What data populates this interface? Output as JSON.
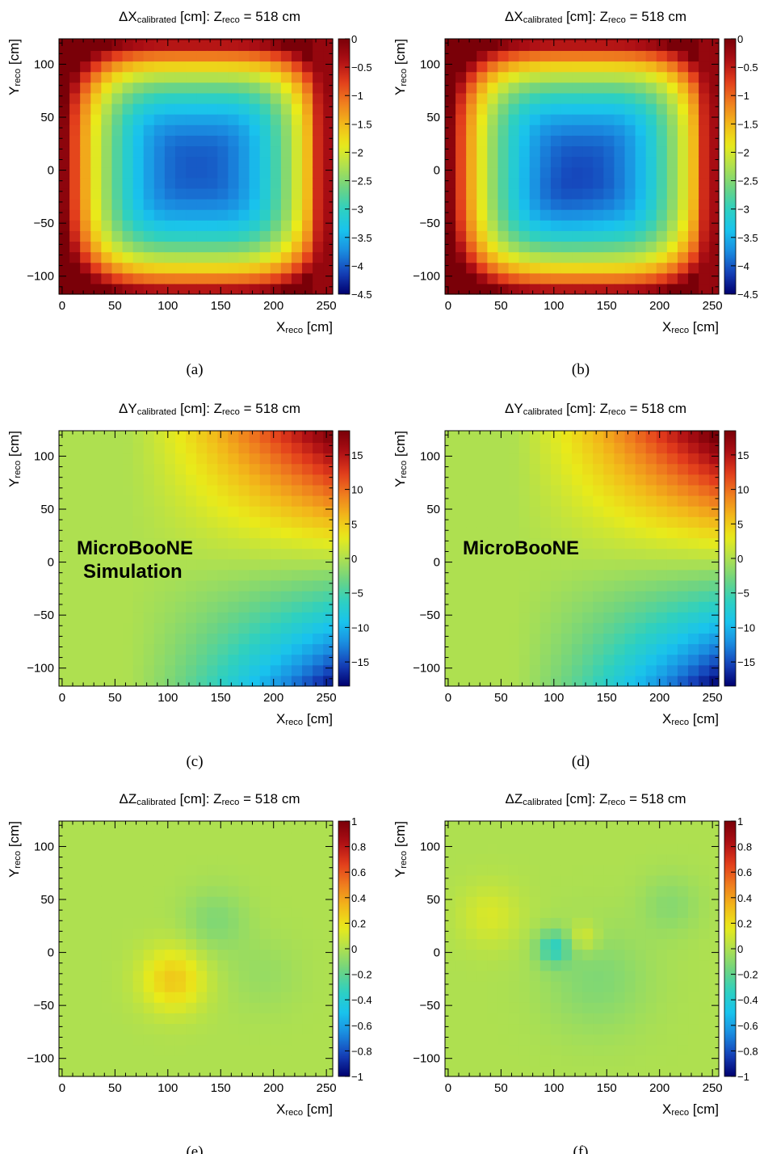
{
  "chart_data": [
    {
      "type": "heatmap",
      "panel_label": "(a)",
      "title": {
        "pre": "ΔX",
        "sub": "calibrated",
        "post": " [cm]:  Z",
        "sub2": "reco",
        "post2": " = 518 cm"
      },
      "xlabel": {
        "main": "X",
        "sub": "reco",
        "unit": " [cm]"
      },
      "ylabel": {
        "main": "Y",
        "sub": "reco",
        "unit": " [cm]"
      },
      "xlim": [
        -3,
        256
      ],
      "ylim": [
        -117,
        124
      ],
      "x_ticks": [
        "0",
        "50",
        "100",
        "150",
        "200",
        "250"
      ],
      "y_ticks": [
        "−100",
        "−50",
        "0",
        "50",
        "100"
      ],
      "zlim": [
        -4.5,
        0
      ],
      "z_ticks": [
        "0",
        "−0.5",
        "−1",
        "−1.5",
        "−2",
        "−2.5",
        "−3",
        "−3.5",
        "−4",
        "−4.5"
      ],
      "grid": {
        "nx": 26,
        "ny": 25,
        "x0": -3,
        "dx": 10,
        "y0": -117,
        "dy": 10
      },
      "field_model": "dx_a",
      "annotation": []
    },
    {
      "type": "heatmap",
      "panel_label": "(b)",
      "title": {
        "pre": "ΔX",
        "sub": "calibrated",
        "post": " [cm]:  Z",
        "sub2": "reco",
        "post2": " = 518 cm"
      },
      "xlabel": {
        "main": "X",
        "sub": "reco",
        "unit": " [cm]"
      },
      "ylabel": {
        "main": "Y",
        "sub": "reco",
        "unit": " [cm]"
      },
      "xlim": [
        -3,
        256
      ],
      "ylim": [
        -117,
        124
      ],
      "x_ticks": [
        "0",
        "50",
        "100",
        "150",
        "200",
        "250"
      ],
      "y_ticks": [
        "−100",
        "−50",
        "0",
        "50",
        "100"
      ],
      "zlim": [
        -4.5,
        0
      ],
      "z_ticks": [
        "0",
        "−0.5",
        "−1",
        "−1.5",
        "−2",
        "−2.5",
        "−3",
        "−3.5",
        "−4",
        "−4.5"
      ],
      "grid": {
        "nx": 26,
        "ny": 25,
        "x0": -3,
        "dx": 10,
        "y0": -117,
        "dy": 10
      },
      "field_model": "dx_b",
      "annotation": []
    },
    {
      "type": "heatmap",
      "panel_label": "(c)",
      "title": {
        "pre": "ΔY",
        "sub": "calibrated",
        "post": " [cm]:  Z",
        "sub2": "reco",
        "post2": " = 518 cm"
      },
      "xlabel": {
        "main": "X",
        "sub": "reco",
        "unit": " [cm]"
      },
      "ylabel": {
        "main": "Y",
        "sub": "reco",
        "unit": " [cm]"
      },
      "xlim": [
        -3,
        256
      ],
      "ylim": [
        -117,
        124
      ],
      "x_ticks": [
        "0",
        "50",
        "100",
        "150",
        "200",
        "250"
      ],
      "y_ticks": [
        "−100",
        "−50",
        "0",
        "50",
        "100"
      ],
      "zlim": [
        -18.5,
        18.5
      ],
      "z_ticks": [
        "15",
        "10",
        "5",
        "0",
        "−5",
        "−10",
        "−15"
      ],
      "grid": {
        "nx": 26,
        "ny": 25,
        "x0": -3,
        "dx": 10,
        "y0": -117,
        "dy": 10
      },
      "field_model": "dy_c",
      "annotation": [
        "MicroBooNE",
        "Simulation"
      ]
    },
    {
      "type": "heatmap",
      "panel_label": "(d)",
      "title": {
        "pre": "ΔY",
        "sub": "calibrated",
        "post": " [cm]:  Z",
        "sub2": "reco",
        "post2": " = 518 cm"
      },
      "xlabel": {
        "main": "X",
        "sub": "reco",
        "unit": " [cm]"
      },
      "ylabel": {
        "main": "Y",
        "sub": "reco",
        "unit": " [cm]"
      },
      "xlim": [
        -3,
        256
      ],
      "ylim": [
        -117,
        124
      ],
      "x_ticks": [
        "0",
        "50",
        "100",
        "150",
        "200",
        "250"
      ],
      "y_ticks": [
        "−100",
        "−50",
        "0",
        "50",
        "100"
      ],
      "zlim": [
        -18.5,
        18.5
      ],
      "z_ticks": [
        "15",
        "10",
        "5",
        "0",
        "−5",
        "−10",
        "−15"
      ],
      "grid": {
        "nx": 26,
        "ny": 25,
        "x0": -3,
        "dx": 10,
        "y0": -117,
        "dy": 10
      },
      "field_model": "dy_d",
      "annotation": [
        "MicroBooNE"
      ]
    },
    {
      "type": "heatmap",
      "panel_label": "(e)",
      "title": {
        "pre": "ΔZ",
        "sub": "calibrated",
        "post": " [cm]:  Z",
        "sub2": "reco",
        "post2": " = 518 cm"
      },
      "xlabel": {
        "main": "X",
        "sub": "reco",
        "unit": " [cm]"
      },
      "ylabel": {
        "main": "Y",
        "sub": "reco",
        "unit": " [cm]"
      },
      "xlim": [
        -3,
        256
      ],
      "ylim": [
        -117,
        124
      ],
      "x_ticks": [
        "0",
        "50",
        "100",
        "150",
        "200",
        "250"
      ],
      "y_ticks": [
        "−100",
        "−50",
        "0",
        "50",
        "100"
      ],
      "zlim": [
        -1,
        1
      ],
      "z_ticks": [
        "1",
        "0.8",
        "0.6",
        "0.4",
        "0.2",
        "0",
        "−0.2",
        "−0.4",
        "−0.6",
        "−0.8",
        "−1"
      ],
      "grid": {
        "nx": 26,
        "ny": 25,
        "x0": -3,
        "dx": 10,
        "y0": -117,
        "dy": 10
      },
      "field_model": "dz_e",
      "annotation": []
    },
    {
      "type": "heatmap",
      "panel_label": "(f)",
      "title": {
        "pre": "ΔZ",
        "sub": "calibrated",
        "post": " [cm]:  Z",
        "sub2": "reco",
        "post2": " = 518 cm"
      },
      "xlabel": {
        "main": "X",
        "sub": "reco",
        "unit": " [cm]"
      },
      "ylabel": {
        "main": "Y",
        "sub": "reco",
        "unit": " [cm]"
      },
      "xlim": [
        -3,
        256
      ],
      "ylim": [
        -117,
        124
      ],
      "x_ticks": [
        "0",
        "50",
        "100",
        "150",
        "200",
        "250"
      ],
      "y_ticks": [
        "−100",
        "−50",
        "0",
        "50",
        "100"
      ],
      "zlim": [
        -1,
        1
      ],
      "z_ticks": [
        "1",
        "0.8",
        "0.6",
        "0.4",
        "0.2",
        "0",
        "−0.2",
        "−0.4",
        "−0.6",
        "−0.8",
        "−1"
      ],
      "grid": {
        "nx": 26,
        "ny": 25,
        "x0": -3,
        "dx": 10,
        "y0": -117,
        "dy": 10
      },
      "field_model": "dz_f",
      "annotation": []
    }
  ],
  "colormap": [
    "#00006e",
    "#1540b8",
    "#1a8be0",
    "#19c3ed",
    "#2ed0c0",
    "#6ed482",
    "#aee050",
    "#e9ea1a",
    "#f2b81a",
    "#ef7d1e",
    "#e23c1c",
    "#ac0e14",
    "#7a0008"
  ]
}
